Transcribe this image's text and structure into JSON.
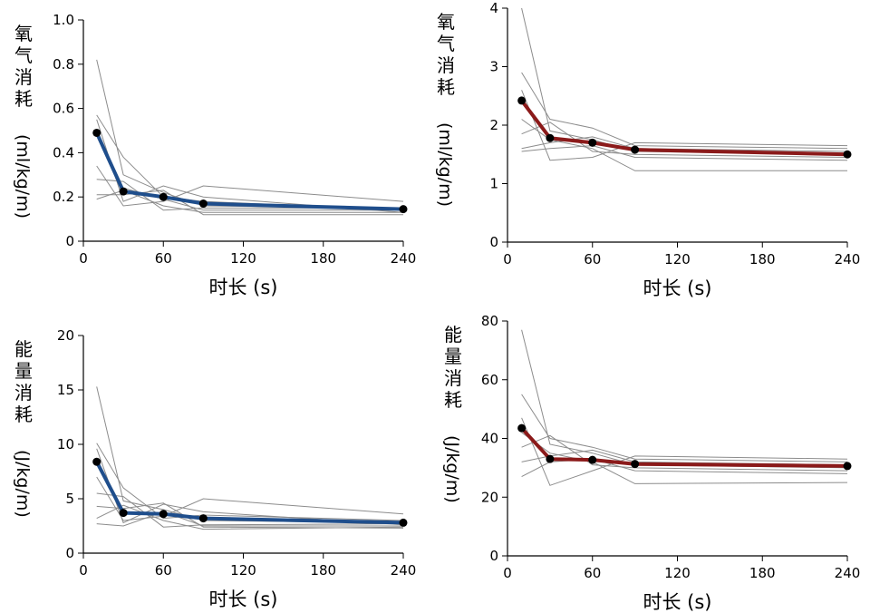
{
  "chart_data": [
    {
      "type": "line",
      "ylabel": "氧气消耗",
      "yunit": "(ml/kg/m)",
      "xlabel": "时长 (s)",
      "xlim": [
        0,
        240
      ],
      "ylim": [
        0,
        1.0
      ],
      "xticks": [
        0,
        60,
        120,
        180,
        240
      ],
      "yticks": [
        0,
        0.2,
        0.4,
        0.6,
        0.8,
        1.0
      ],
      "ytick_labels": [
        "0",
        "0.2",
        "0.4",
        "0.6",
        "0.8",
        "1.0"
      ],
      "mean_color": "#1f4e8c",
      "mean": {
        "x": [
          10,
          30,
          60,
          90,
          240
        ],
        "y": [
          0.49,
          0.225,
          0.2,
          0.17,
          0.145
        ]
      },
      "individuals": [
        {
          "x": [
            10,
            30,
            60,
            90,
            240
          ],
          "y": [
            0.82,
            0.3,
            0.22,
            0.16,
            0.15
          ]
        },
        {
          "x": [
            10,
            30,
            60,
            90,
            240
          ],
          "y": [
            0.57,
            0.38,
            0.2,
            0.18,
            0.14
          ]
        },
        {
          "x": [
            10,
            30,
            60,
            90,
            240
          ],
          "y": [
            0.55,
            0.18,
            0.25,
            0.2,
            0.13
          ]
        },
        {
          "x": [
            10,
            30,
            60,
            90,
            240
          ],
          "y": [
            0.34,
            0.16,
            0.18,
            0.25,
            0.18
          ]
        },
        {
          "x": [
            10,
            30,
            60,
            90,
            240
          ],
          "y": [
            0.28,
            0.27,
            0.14,
            0.15,
            0.15
          ]
        },
        {
          "x": [
            10,
            30,
            60,
            90,
            240
          ],
          "y": [
            0.21,
            0.21,
            0.23,
            0.12,
            0.12
          ]
        },
        {
          "x": [
            10,
            30,
            60,
            90,
            240
          ],
          "y": [
            0.19,
            0.23,
            0.16,
            0.13,
            0.13
          ]
        },
        {
          "x": [
            10,
            30,
            60,
            90,
            240
          ],
          "y": [
            0.5,
            0.24,
            0.19,
            0.14,
            0.14
          ]
        }
      ]
    },
    {
      "type": "line",
      "ylabel": "氧气消耗",
      "yunit": "(ml/kg/m)",
      "xlabel": "时长 (s)",
      "xlim": [
        0,
        240
      ],
      "ylim": [
        0,
        4
      ],
      "xticks": [
        0,
        60,
        120,
        180,
        240
      ],
      "yticks": [
        0,
        1,
        2,
        3,
        4
      ],
      "ytick_labels": [
        "0",
        "1",
        "2",
        "3",
        "4"
      ],
      "mean_color": "#8b1a1a",
      "mean": {
        "x": [
          10,
          30,
          60,
          90,
          240
        ],
        "y": [
          2.42,
          1.78,
          1.7,
          1.58,
          1.5
        ]
      },
      "individuals": [
        {
          "x": [
            10,
            30,
            60,
            90,
            240
          ],
          "y": [
            4.0,
            1.9,
            1.75,
            1.55,
            1.5
          ]
        },
        {
          "x": [
            10,
            30,
            60,
            90,
            240
          ],
          "y": [
            2.9,
            2.1,
            1.95,
            1.65,
            1.6
          ]
        },
        {
          "x": [
            10,
            30,
            60,
            90,
            240
          ],
          "y": [
            2.6,
            1.4,
            1.45,
            1.7,
            1.65
          ]
        },
        {
          "x": [
            10,
            30,
            60,
            90,
            240
          ],
          "y": [
            2.1,
            1.75,
            1.6,
            1.22,
            1.22
          ]
        },
        {
          "x": [
            10,
            30,
            60,
            90,
            240
          ],
          "y": [
            1.85,
            2.05,
            1.55,
            1.5,
            1.45
          ]
        },
        {
          "x": [
            10,
            30,
            60,
            90,
            240
          ],
          "y": [
            1.6,
            1.7,
            1.8,
            1.6,
            1.55
          ]
        },
        {
          "x": [
            10,
            30,
            60,
            90,
            240
          ],
          "y": [
            1.55,
            1.6,
            1.65,
            1.45,
            1.4
          ]
        }
      ]
    },
    {
      "type": "line",
      "ylabel": "能量消耗",
      "yunit": "(J/kg/m)",
      "xlabel": "时长 (s)",
      "xlim": [
        0,
        240
      ],
      "ylim": [
        0,
        20
      ],
      "xticks": [
        0,
        60,
        120,
        180,
        240
      ],
      "yticks": [
        0,
        5,
        10,
        15,
        20
      ],
      "ytick_labels": [
        "0",
        "5",
        "10",
        "15",
        "20"
      ],
      "mean_color": "#1f4e8c",
      "mean": {
        "x": [
          10,
          30,
          60,
          90,
          240
        ],
        "y": [
          8.4,
          3.7,
          3.6,
          3.2,
          2.8
        ]
      },
      "individuals": [
        {
          "x": [
            10,
            30,
            60,
            90,
            240
          ],
          "y": [
            15.3,
            4.8,
            4.0,
            3.0,
            2.8
          ]
        },
        {
          "x": [
            10,
            30,
            60,
            90,
            240
          ],
          "y": [
            10.1,
            6.0,
            3.2,
            3.5,
            3.0
          ]
        },
        {
          "x": [
            10,
            30,
            60,
            90,
            240
          ],
          "y": [
            9.6,
            2.8,
            4.5,
            3.8,
            2.6
          ]
        },
        {
          "x": [
            10,
            30,
            60,
            90,
            240
          ],
          "y": [
            7.0,
            3.0,
            3.4,
            5.0,
            3.6
          ]
        },
        {
          "x": [
            10,
            30,
            60,
            90,
            240
          ],
          "y": [
            5.5,
            5.2,
            2.4,
            2.6,
            2.7
          ]
        },
        {
          "x": [
            10,
            30,
            60,
            90,
            240
          ],
          "y": [
            4.3,
            4.1,
            4.6,
            2.4,
            2.3
          ]
        },
        {
          "x": [
            10,
            30,
            60,
            90,
            240
          ],
          "y": [
            3.2,
            4.4,
            3.0,
            2.2,
            2.4
          ]
        },
        {
          "x": [
            10,
            30,
            60,
            90,
            240
          ],
          "y": [
            2.7,
            2.5,
            3.8,
            2.5,
            2.5
          ]
        }
      ]
    },
    {
      "type": "line",
      "ylabel": "能量消耗",
      "yunit": "(J/kg/m)",
      "xlabel": "时长 (s)",
      "xlim": [
        0,
        240
      ],
      "ylim": [
        0,
        80
      ],
      "xticks": [
        0,
        60,
        120,
        180,
        240
      ],
      "yticks": [
        0,
        20,
        40,
        60,
        80
      ],
      "ytick_labels": [
        "0",
        "20",
        "40",
        "60",
        "80"
      ],
      "mean_color": "#8b1a1a",
      "mean": {
        "x": [
          10,
          30,
          60,
          90,
          240
        ],
        "y": [
          43.5,
          33.0,
          32.7,
          31.3,
          30.6
        ]
      },
      "individuals": [
        {
          "x": [
            10,
            30,
            60,
            90,
            240
          ],
          "y": [
            77.0,
            38.0,
            35.0,
            31.0,
            30.0
          ]
        },
        {
          "x": [
            10,
            30,
            60,
            90,
            240
          ],
          "y": [
            55.0,
            40.0,
            37.0,
            33.0,
            32.0
          ]
        },
        {
          "x": [
            10,
            30,
            60,
            90,
            240
          ],
          "y": [
            47.0,
            24.0,
            29.0,
            34.0,
            33.0
          ]
        },
        {
          "x": [
            10,
            30,
            60,
            90,
            240
          ],
          "y": [
            42.0,
            35.0,
            32.0,
            24.6,
            25.0
          ]
        },
        {
          "x": [
            10,
            30,
            60,
            90,
            240
          ],
          "y": [
            37.0,
            41.0,
            31.0,
            30.0,
            29.0
          ]
        },
        {
          "x": [
            10,
            30,
            60,
            90,
            240
          ],
          "y": [
            32.0,
            34.0,
            36.0,
            32.0,
            31.0
          ]
        },
        {
          "x": [
            10,
            30,
            60,
            90,
            240
          ],
          "y": [
            27.0,
            32.0,
            33.0,
            29.0,
            28.0
          ]
        }
      ]
    }
  ]
}
